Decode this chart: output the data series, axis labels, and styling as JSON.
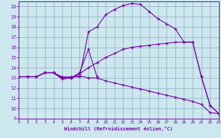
{
  "xlabel": "Windchill (Refroidissement éolien,°C)",
  "bg_color": "#cce8ee",
  "line_color": "#7700aa",
  "grid_color": "#88aabb",
  "xlim": [
    0,
    23
  ],
  "ylim": [
    9,
    20.5
  ],
  "yticks": [
    9,
    10,
    11,
    12,
    13,
    14,
    15,
    16,
    17,
    18,
    19,
    20
  ],
  "xticks": [
    0,
    1,
    2,
    3,
    4,
    5,
    6,
    7,
    8,
    9,
    10,
    11,
    12,
    13,
    14,
    15,
    16,
    17,
    18,
    19,
    20,
    21,
    22,
    23
  ],
  "curves": [
    {
      "x": [
        0,
        1,
        2,
        3,
        4,
        5,
        6,
        7,
        8,
        9,
        10,
        11,
        12,
        13,
        14,
        15,
        16,
        17,
        18,
        19,
        20,
        21,
        22,
        23
      ],
      "y": [
        13.1,
        13.1,
        13.1,
        13.5,
        13.5,
        13.1,
        13.1,
        13.1,
        17.5,
        18.0,
        19.2,
        19.7,
        20.1,
        20.3,
        20.2,
        19.5,
        18.8,
        18.3,
        17.8,
        16.5,
        16.5,
        13.1,
        10.3,
        9.5
      ]
    },
    {
      "x": [
        0,
        1,
        2,
        3,
        4,
        5,
        6,
        7,
        8,
        9,
        10,
        11,
        12,
        13,
        14,
        15,
        16,
        17,
        18,
        19,
        20,
        21,
        22,
        23
      ],
      "y": [
        13.1,
        13.1,
        13.1,
        13.5,
        13.5,
        13.0,
        13.0,
        13.4,
        14.0,
        14.5,
        15.0,
        15.4,
        15.8,
        16.0,
        16.1,
        16.2,
        16.3,
        16.4,
        16.5,
        16.5,
        16.5,
        13.1,
        10.3,
        9.5
      ]
    },
    {
      "x": [
        0,
        1,
        2,
        3,
        4,
        5,
        6,
        7,
        8,
        9,
        10,
        11,
        12,
        13,
        14,
        15,
        16,
        17,
        18,
        19,
        20,
        21,
        22,
        23
      ],
      "y": [
        13.1,
        13.1,
        13.1,
        13.5,
        13.5,
        12.9,
        13.0,
        13.2,
        13.0,
        13.0,
        12.7,
        12.5,
        12.3,
        12.1,
        11.9,
        11.7,
        11.5,
        11.3,
        11.1,
        10.9,
        10.7,
        10.4,
        9.6,
        9.5
      ]
    },
    {
      "x": [
        0,
        1,
        2,
        3,
        4,
        5,
        6,
        7,
        8,
        9
      ],
      "y": [
        13.1,
        13.1,
        13.1,
        13.5,
        13.5,
        12.9,
        13.0,
        13.5,
        15.8,
        13.1
      ]
    }
  ]
}
